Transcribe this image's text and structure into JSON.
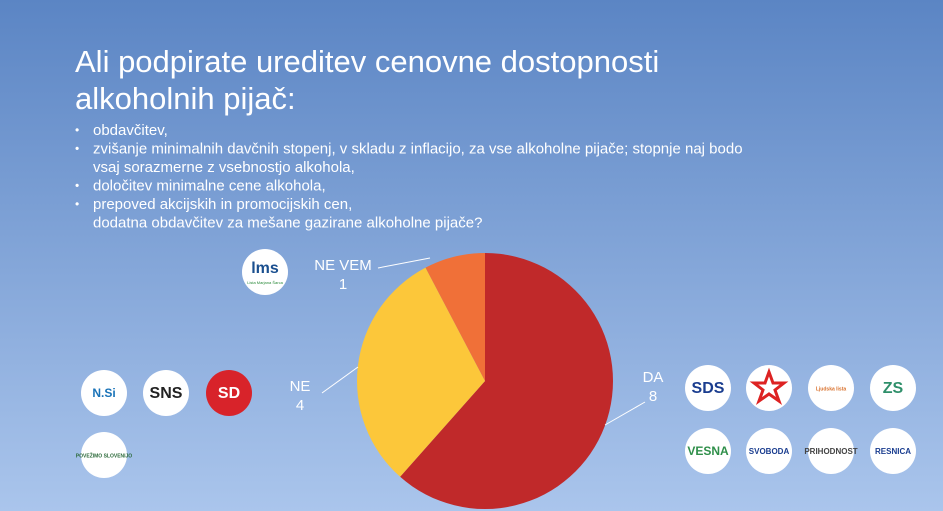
{
  "chart_data": {
    "type": "pie",
    "title": [
      "Ali podpirate ureditev cenovne dostopnosti",
      "alkoholnih pijač:"
    ],
    "bullets": [
      "obdavčitev,",
      "zvišanje minimalnih davčnih stopenj, v skladu z inflacijo, za vse alkoholne pijače; stopnje naj bodo",
      "vsaj sorazmerne z vsebnostjo alkohola,",
      "določitev minimalne cene alkohola,",
      "prepoved akcijskih in promocijskih cen,",
      "dodatna obdavčitev za mešane gazirane alkoholne pijače?"
    ],
    "categories": [
      "DA",
      "NE",
      "NE VEM"
    ],
    "values": [
      8,
      4,
      1
    ],
    "colors": [
      "#c0292a",
      "#fcc73a",
      "#f07038"
    ]
  },
  "logos": [
    {
      "label": "lms",
      "sub": "Lista Marjana Šarca",
      "color": "#1a4f8f"
    },
    {
      "label": "N.Si",
      "color": "#1a73b8"
    },
    {
      "label": "SNS",
      "color": "#222222"
    },
    {
      "label": "SD",
      "color": "#ffffff"
    },
    {
      "label": "POVEŽIMO SLOVENIJO",
      "color": "#2c6a3a"
    },
    {
      "label": "SDS",
      "color": "#1a3d8f"
    },
    {
      "label": "Ljudska lista",
      "color": "#d9702b"
    },
    {
      "label": "ZS",
      "color": "#2f8f6a"
    },
    {
      "label": "VESNA",
      "color": "#2f8f4a"
    },
    {
      "label": "SVOBODA",
      "color": "#1a3d8f"
    },
    {
      "label": "PRIHODNOST",
      "color": "#444444"
    },
    {
      "label": "RESNICA",
      "color": "#1a3d8f"
    }
  ]
}
